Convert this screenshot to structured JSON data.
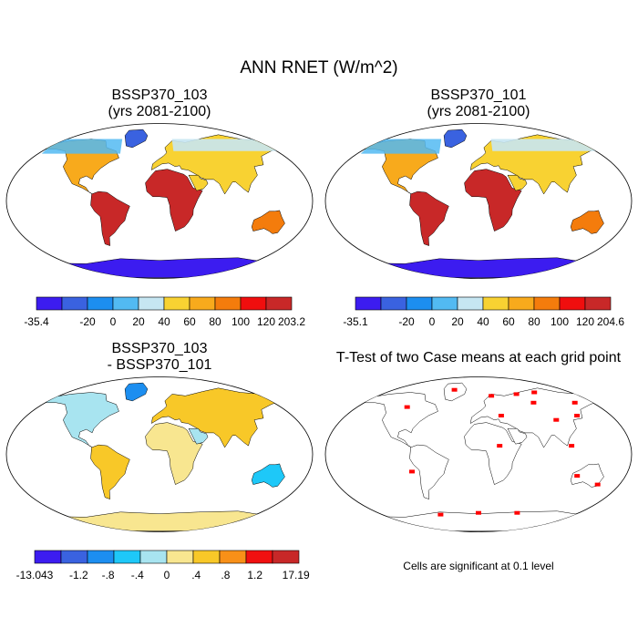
{
  "main_title": "ANN RNET (W/m^2)",
  "panels": [
    {
      "title_line1": "BSSP370_103",
      "title_line2": "(yrs 2081-2100)"
    },
    {
      "title_line1": "BSSP370_101",
      "title_line2": "(yrs 2081-2100)"
    },
    {
      "title_line1": "BSSP370_103",
      "title_line2": "- BSSP370_101"
    },
    {
      "title_line1": "T-Test of two Case means at each grid point",
      "title_line2": ""
    }
  ],
  "colorbars": [
    {
      "colors": [
        "#3c1cf0",
        "#3a62e0",
        "#1c8ef0",
        "#52baf2",
        "#c6e6f2",
        "#f8d232",
        "#f8aa1c",
        "#f47c0c",
        "#f00e0e",
        "#c82828"
      ],
      "labels": [
        "-35.4",
        "-20",
        "0",
        "20",
        "40",
        "60",
        "80",
        "100",
        "120",
        "203.2"
      ]
    },
    {
      "colors": [
        "#3c1cf0",
        "#3a62e0",
        "#1c8ef0",
        "#52baf2",
        "#c6e6f2",
        "#f8d232",
        "#f8aa1c",
        "#f47c0c",
        "#f00e0e",
        "#c82828"
      ],
      "labels": [
        "-35.1",
        "-20",
        "0",
        "20",
        "40",
        "60",
        "80",
        "100",
        "120",
        "204.6"
      ]
    },
    {
      "colors": [
        "#3c1cf0",
        "#3a62e0",
        "#1c8ef0",
        "#1ec8f8",
        "#a8e4f0",
        "#f8e690",
        "#f8c828",
        "#f89018",
        "#f01010",
        "#c82828"
      ],
      "labels": [
        "-13.043",
        "-1.2",
        "-.8",
        "-.4",
        "0",
        ".4",
        ".8",
        "1.2",
        "17.192"
      ]
    }
  ],
  "ttest_note": "Cells are significant at 0.1 level",
  "colors": {
    "significant": "#ff0000",
    "coastline": "#000000"
  }
}
